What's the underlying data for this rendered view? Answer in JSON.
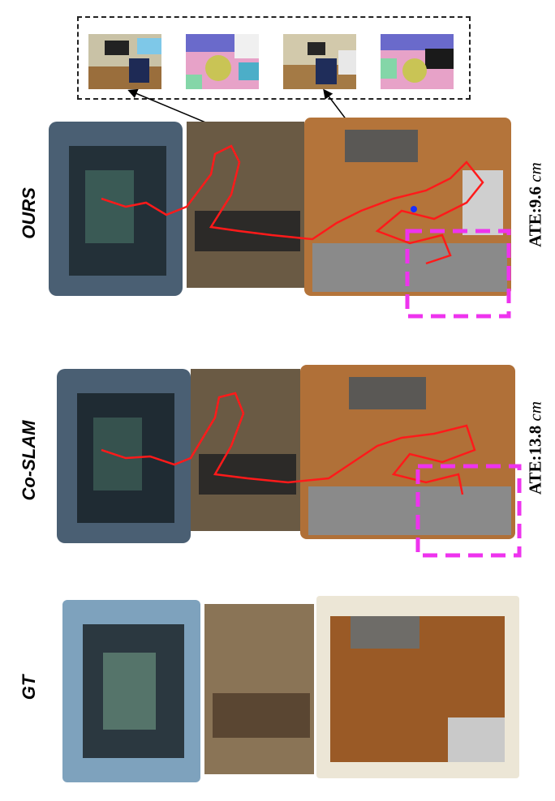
{
  "rows": [
    {
      "label": "OURS",
      "ate_label": "ATE:9.6 ",
      "ate_unit": "cm"
    },
    {
      "label": "Co-SLAM",
      "ate_label": "ATE:13.8 ",
      "ate_unit": "cm"
    },
    {
      "label": "GT",
      "ate_label": "",
      "ate_unit": ""
    }
  ],
  "colors": {
    "trajectory": "#ff1a1a",
    "highlight": "#ee33ee",
    "floor": "#b06a30",
    "wall": "#5b6e82"
  }
}
